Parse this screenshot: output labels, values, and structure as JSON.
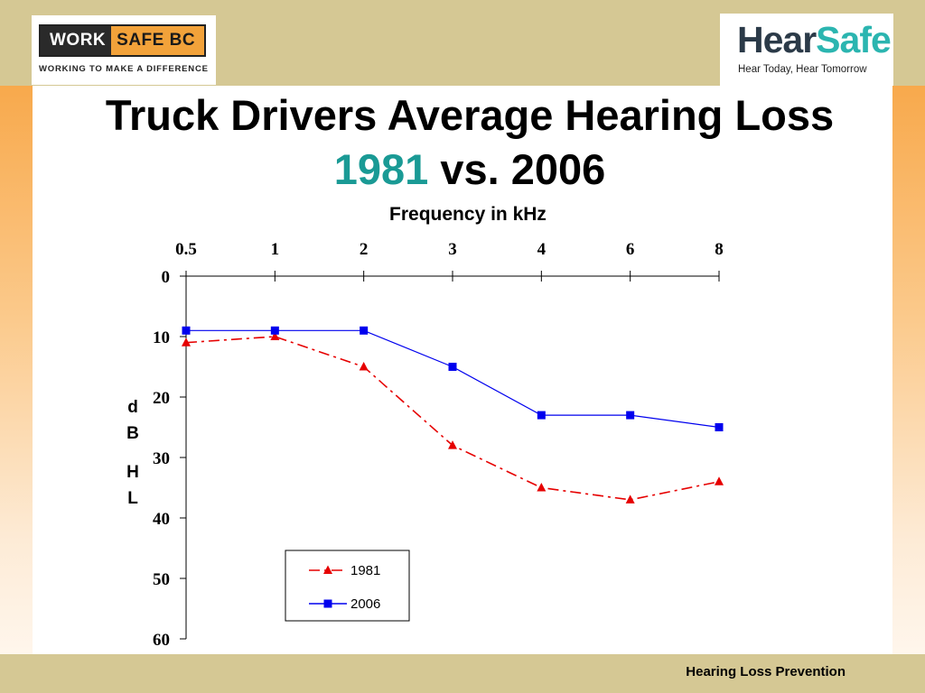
{
  "header": {
    "logo_left": {
      "brand_a": "WORK",
      "brand_b": "SAFE BC",
      "tagline": "WORKING TO MAKE A DIFFERENCE"
    },
    "logo_right": {
      "brand_a": "Hear",
      "brand_b": "Safe",
      "tagline": "Hear Today, Hear Tomorrow"
    }
  },
  "title": {
    "line1": "Truck Drivers Average Hearing Loss",
    "accent": "1981",
    "rest": " vs. 2006"
  },
  "footer": {
    "text": "Hearing Loss Prevention"
  },
  "colors": {
    "band": "#d5c894",
    "accent": "#1a9a95",
    "series_1981": "#e60000",
    "series_2006": "#0000ee"
  },
  "chart_data": {
    "type": "line",
    "title": "Truck Drivers Average Hearing Loss 1981 vs. 2006",
    "xlabel": "Frequency in kHz",
    "ylabel": "dB HL",
    "ylabel_lines": [
      "d",
      "B",
      "H",
      "L"
    ],
    "categories": [
      "0.5",
      "1",
      "2",
      "3",
      "4",
      "6",
      "8"
    ],
    "yticks": [
      "0",
      "10",
      "20",
      "30",
      "40",
      "50",
      "60"
    ],
    "ylim": [
      0,
      60
    ],
    "y_inverted": true,
    "x_axis_position": "top",
    "grid": false,
    "legend_position": "bottom-center",
    "series": [
      {
        "name": "1981",
        "values": [
          11,
          10,
          15,
          28,
          35,
          37,
          34
        ],
        "marker": "triangle",
        "line": "dash-dot",
        "color": "#e60000"
      },
      {
        "name": "2006",
        "values": [
          9,
          9,
          9,
          15,
          23,
          23,
          25
        ],
        "marker": "square",
        "line": "solid",
        "color": "#0000ee"
      }
    ]
  }
}
